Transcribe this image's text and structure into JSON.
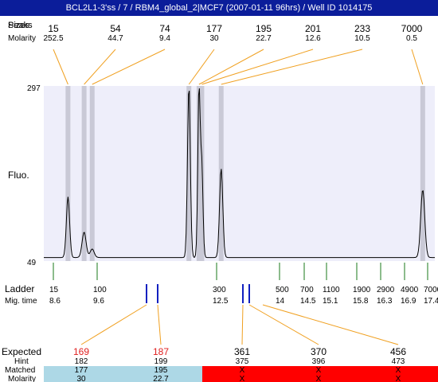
{
  "header": {
    "title": "BCL2L1-3'ss / 7 / RBM4_global_2|MCF7 (2007-01-11 96hrs) / Well ID 1014175"
  },
  "labels": {
    "peaks_row": "Peaks",
    "size_row": "Sizes",
    "molarity_row": "Molarity",
    "fluo": "Fluo.",
    "ladder": "Ladder",
    "mig_time": "Mig. time",
    "expected": "Expected",
    "hint": "Hint",
    "matched": "Matched",
    "molarity_bottom": "Molarity"
  },
  "colors": {
    "title_bg": "#0b1d9a",
    "plot_bg": "#eeeefa",
    "peak_band": "#c9c9d6",
    "connector": "#f0a020",
    "ladder_tick": "#1a7a1a",
    "marker_blue": "#1020c0",
    "expected_red": "#e02020",
    "matched_ok": "#add8e6",
    "matched_fail": "#ff0000"
  },
  "chart_data": {
    "type": "line",
    "title": "",
    "xlabel": "",
    "ylabel": "Fluo.",
    "ylim": [
      49,
      297
    ],
    "yticks": [
      297,
      49
    ],
    "peaks": [
      {
        "size": "15",
        "molarity": "252.5"
      },
      {
        "size": "54",
        "molarity": "44.7"
      },
      {
        "size": "74",
        "molarity": "9.4"
      },
      {
        "size": "177",
        "molarity": "30"
      },
      {
        "size": "195",
        "molarity": "22.7"
      },
      {
        "size": "201",
        "molarity": "12.6"
      },
      {
        "size": "233",
        "molarity": "10.5"
      },
      {
        "size": "7000",
        "molarity": "0.5"
      }
    ],
    "ladder": [
      {
        "size": "15",
        "time": "8.6"
      },
      {
        "size": "100",
        "time": "9.6"
      },
      {
        "size": "300",
        "time": "12.5"
      },
      {
        "size": "500",
        "time": "14"
      },
      {
        "size": "700",
        "time": "14.5"
      },
      {
        "size": "1100",
        "time": "15.1"
      },
      {
        "size": "1900",
        "time": "15.8"
      },
      {
        "size": "2900",
        "time": "16.3"
      },
      {
        "size": "4900",
        "time": "16.9"
      },
      {
        "size": "7000",
        "time": "17.4"
      }
    ],
    "expected": [
      {
        "expected": "169",
        "hint": "182",
        "matched": "177",
        "molarity": "30",
        "match": true
      },
      {
        "expected": "187",
        "hint": "199",
        "matched": "195",
        "molarity": "22.7",
        "match": true
      },
      {
        "expected": "361",
        "hint": "375",
        "matched": "X",
        "molarity": "X",
        "match": false
      },
      {
        "expected": "370",
        "hint": "396",
        "matched": "X",
        "molarity": "X",
        "match": false
      },
      {
        "expected": "456",
        "hint": "473",
        "matched": "X",
        "molarity": "X",
        "match": false
      }
    ],
    "trace": {
      "baseline": 54,
      "peaks": [
        {
          "t": 8.6,
          "height": 140,
          "width": 0.04
        },
        {
          "t": 9.0,
          "height": 90,
          "width": 0.05
        },
        {
          "t": 9.2,
          "height": 66,
          "width": 0.05
        },
        {
          "t": 11.6,
          "height": 297,
          "width": 0.035
        },
        {
          "t": 11.85,
          "height": 290,
          "width": 0.03
        },
        {
          "t": 11.92,
          "height": 180,
          "width": 0.03
        },
        {
          "t": 12.4,
          "height": 180,
          "width": 0.04
        },
        {
          "t": 17.4,
          "height": 150,
          "width": 0.05
        }
      ]
    }
  }
}
